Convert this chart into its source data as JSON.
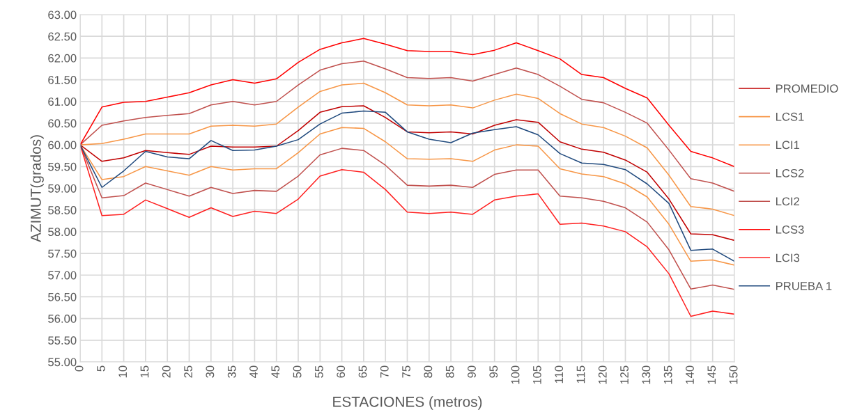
{
  "chart_data": {
    "type": "line",
    "xlabel": "ESTACIONES (metros)",
    "ylabel": "AZIMUT(grados)",
    "categories": [
      "0",
      "5",
      "10",
      "15",
      "20",
      "25",
      "30",
      "35",
      "40",
      "45",
      "50",
      "55",
      "60",
      "65",
      "70",
      "75",
      "80",
      "85",
      "90",
      "95",
      "100",
      "105",
      "110",
      "115",
      "120",
      "125",
      "130",
      "135",
      "140",
      "145",
      "150"
    ],
    "series": [
      {
        "name": "PROMEDIO",
        "color": "#c00000",
        "values": [
          60.0,
          59.62,
          59.7,
          59.87,
          59.82,
          59.78,
          59.97,
          59.95,
          59.95,
          59.97,
          60.33,
          60.75,
          60.88,
          60.9,
          60.63,
          60.3,
          60.28,
          60.3,
          60.25,
          60.45,
          60.58,
          60.52,
          60.07,
          59.9,
          59.83,
          59.65,
          59.37,
          58.75,
          57.95,
          57.93,
          57.8
        ]
      },
      {
        "name": "LCS1",
        "color": "#f79646",
        "values": [
          60.0,
          60.03,
          60.13,
          60.25,
          60.25,
          60.25,
          60.43,
          60.45,
          60.43,
          60.48,
          60.87,
          61.23,
          61.38,
          61.42,
          61.2,
          60.92,
          60.9,
          60.92,
          60.85,
          61.03,
          61.17,
          61.07,
          60.72,
          60.48,
          60.4,
          60.2,
          59.93,
          59.3,
          58.58,
          58.52,
          58.37
        ]
      },
      {
        "name": "LCI1",
        "color": "#f79646",
        "values": [
          60.0,
          59.2,
          59.27,
          59.5,
          59.4,
          59.3,
          59.5,
          59.42,
          59.45,
          59.45,
          59.82,
          60.25,
          60.4,
          60.38,
          60.07,
          59.68,
          59.67,
          59.68,
          59.62,
          59.88,
          60.0,
          59.97,
          59.45,
          59.33,
          59.27,
          59.1,
          58.8,
          58.17,
          57.32,
          57.35,
          57.23
        ]
      },
      {
        "name": "LCS2",
        "color": "#c0504d",
        "values": [
          60.0,
          60.45,
          60.55,
          60.63,
          60.68,
          60.72,
          60.92,
          61.0,
          60.92,
          61.0,
          61.38,
          61.72,
          61.87,
          61.93,
          61.75,
          61.55,
          61.53,
          61.55,
          61.47,
          61.62,
          61.77,
          61.62,
          61.35,
          61.05,
          60.97,
          60.75,
          60.5,
          59.88,
          59.22,
          59.12,
          58.93
        ]
      },
      {
        "name": "LCI2",
        "color": "#c0504d",
        "values": [
          60.0,
          58.78,
          58.83,
          59.12,
          58.97,
          58.82,
          59.02,
          58.88,
          58.95,
          58.93,
          59.28,
          59.77,
          59.92,
          59.87,
          59.53,
          59.07,
          59.05,
          59.07,
          59.02,
          59.32,
          59.42,
          59.42,
          58.82,
          58.78,
          58.7,
          58.55,
          58.22,
          57.58,
          56.68,
          56.77,
          56.67
        ]
      },
      {
        "name": "LCS3",
        "color": "#ff0000",
        "values": [
          60.0,
          60.87,
          60.98,
          61.0,
          61.1,
          61.2,
          61.38,
          61.5,
          61.42,
          61.52,
          61.9,
          62.2,
          62.35,
          62.45,
          62.32,
          62.17,
          62.15,
          62.15,
          62.08,
          62.18,
          62.35,
          62.17,
          61.98,
          61.62,
          61.55,
          61.3,
          61.08,
          60.45,
          59.85,
          59.7,
          59.5
        ]
      },
      {
        "name": "LCI3",
        "color": "#ff2020",
        "values": [
          60.0,
          58.37,
          58.4,
          58.73,
          58.53,
          58.33,
          58.55,
          58.35,
          58.47,
          58.42,
          58.75,
          59.28,
          59.43,
          59.37,
          58.97,
          58.45,
          58.42,
          58.45,
          58.4,
          58.73,
          58.82,
          58.87,
          58.17,
          58.2,
          58.13,
          58.0,
          57.65,
          57.03,
          56.05,
          56.17,
          56.1
        ]
      },
      {
        "name": "PRUEBA 1",
        "color": "#1f497d",
        "values": [
          60.0,
          59.02,
          59.4,
          59.85,
          59.72,
          59.68,
          60.1,
          59.87,
          59.88,
          59.97,
          60.12,
          60.48,
          60.73,
          60.78,
          60.75,
          60.3,
          60.13,
          60.05,
          60.27,
          60.35,
          60.42,
          60.23,
          59.8,
          59.58,
          59.55,
          59.43,
          59.1,
          58.65,
          57.57,
          57.6,
          57.32
        ]
      }
    ],
    "ylim": [
      55,
      63
    ],
    "yticks": [
      {
        "value": 55,
        "label": "55.00"
      },
      {
        "value": 55.5,
        "label": "55.50"
      },
      {
        "value": 56,
        "label": "56.00"
      },
      {
        "value": 56.5,
        "label": "56.50"
      },
      {
        "value": 57,
        "label": "57.00"
      },
      {
        "value": 57.5,
        "label": "57.50"
      },
      {
        "value": 58,
        "label": "58.00"
      },
      {
        "value": 58.5,
        "label": "58.50"
      },
      {
        "value": 59,
        "label": "59.00"
      },
      {
        "value": 59.5,
        "label": "59.50"
      },
      {
        "value": 60,
        "label": "60.00"
      },
      {
        "value": 60.5,
        "label": "60.50"
      },
      {
        "value": 61,
        "label": "61.00"
      },
      {
        "value": 61.5,
        "label": "61.50"
      },
      {
        "value": 62,
        "label": "62.00"
      },
      {
        "value": 62.5,
        "label": "62.50"
      },
      {
        "value": 63,
        "label": "63.00"
      }
    ],
    "grid": true,
    "legend": "right",
    "marker": "none",
    "line_style": "solid"
  }
}
